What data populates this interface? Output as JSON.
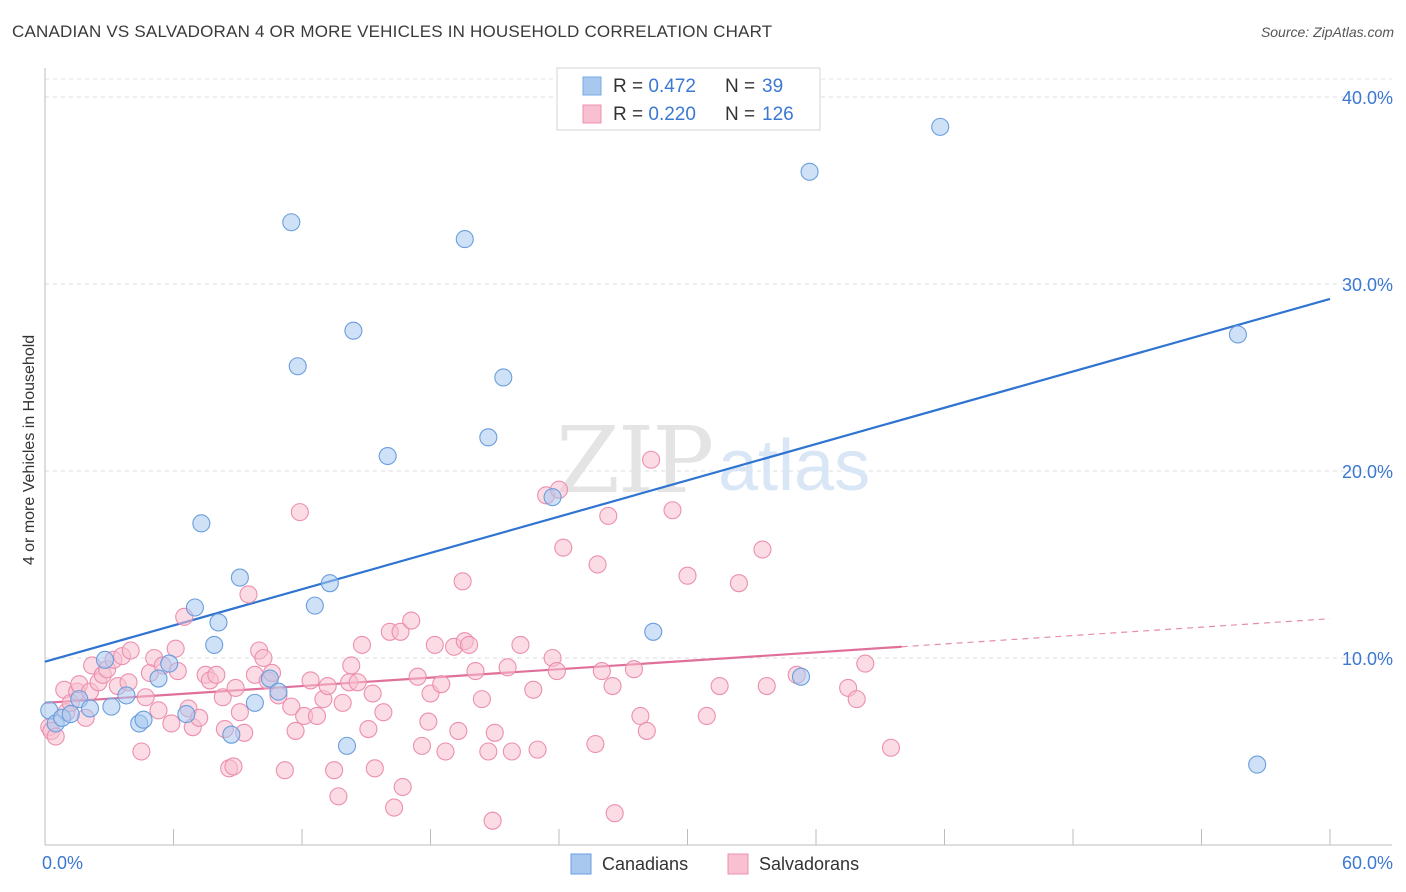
{
  "header": {
    "title": "CANADIAN VS SALVADORAN 4 OR MORE VEHICLES IN HOUSEHOLD CORRELATION CHART",
    "source": "Source: ZipAtlas.com"
  },
  "watermark": {
    "part1": "ZIP",
    "part2": "atlas"
  },
  "legend_top": {
    "rows": [
      {
        "r_label": "R = ",
        "r_value": "0.472",
        "n_label": "N = ",
        "n_value": " 39",
        "color": "#a8c8f0",
        "stroke": "#7aa8e0"
      },
      {
        "r_label": "R = ",
        "r_value": "0.220",
        "n_label": "N = ",
        "n_value": "126",
        "color": "#f8c0d0",
        "stroke": "#f090b0"
      }
    ]
  },
  "chart_data": {
    "type": "scatter",
    "title": "CANADIAN VS SALVADORAN 4 OR MORE VEHICLES IN HOUSEHOLD CORRELATION CHART",
    "xlabel": "",
    "ylabel": "4 or more Vehicles in Household",
    "xlim": [
      0,
      60
    ],
    "ylim": [
      0,
      40.8
    ],
    "x_tick_labels": {
      "left": "0.0%",
      "right": "60.0%"
    },
    "y_ticks": [
      10,
      20,
      30,
      40
    ],
    "y_tick_labels": [
      "10.0%",
      "20.0%",
      "30.0%",
      "40.0%"
    ],
    "grid": true,
    "legend_position": "bottom-center",
    "series": [
      {
        "name": "Canadians",
        "color": "#a8c8f0",
        "stroke": "#6a9edc",
        "line_color": "#2f74d0",
        "trend": {
          "x0": 0,
          "y0": 9.8,
          "x1": 60,
          "y1": 29.2,
          "solid_until": 60
        },
        "points": [
          [
            0.2,
            7.2
          ],
          [
            0.5,
            6.5
          ],
          [
            0.8,
            6.8
          ],
          [
            1.2,
            7.0
          ],
          [
            1.6,
            7.8
          ],
          [
            2.1,
            7.3
          ],
          [
            2.8,
            9.9
          ],
          [
            3.1,
            7.4
          ],
          [
            3.8,
            8.0
          ],
          [
            4.4,
            6.5
          ],
          [
            4.6,
            6.7
          ],
          [
            5.3,
            8.9
          ],
          [
            5.8,
            9.7
          ],
          [
            6.6,
            7.0
          ],
          [
            7.0,
            12.7
          ],
          [
            7.3,
            17.2
          ],
          [
            7.9,
            10.7
          ],
          [
            8.1,
            11.9
          ],
          [
            8.7,
            5.9
          ],
          [
            9.1,
            14.3
          ],
          [
            9.8,
            7.6
          ],
          [
            10.5,
            8.9
          ],
          [
            10.9,
            8.2
          ],
          [
            11.5,
            33.3
          ],
          [
            11.8,
            25.6
          ],
          [
            12.6,
            12.8
          ],
          [
            13.3,
            14.0
          ],
          [
            14.1,
            5.3
          ],
          [
            14.4,
            27.5
          ],
          [
            16.0,
            20.8
          ],
          [
            19.6,
            32.4
          ],
          [
            20.7,
            21.8
          ],
          [
            21.4,
            25.0
          ],
          [
            23.7,
            18.6
          ],
          [
            28.4,
            11.4
          ],
          [
            35.3,
            9.0
          ],
          [
            35.7,
            36.0
          ],
          [
            41.8,
            38.4
          ],
          [
            55.7,
            27.3
          ],
          [
            56.6,
            4.3
          ]
        ]
      },
      {
        "name": "Salvadorans",
        "color": "#f8c0d0",
        "stroke": "#ec8fae",
        "line_color": "#e0709a",
        "trend": {
          "x0": 0,
          "y0": 7.6,
          "x1": 60,
          "y1": 12.1,
          "solid_until": 40
        },
        "points": [
          [
            0.2,
            6.3
          ],
          [
            0.3,
            6.1
          ],
          [
            0.5,
            5.8
          ],
          [
            0.9,
            8.3
          ],
          [
            1.0,
            7.1
          ],
          [
            1.2,
            7.6
          ],
          [
            1.5,
            8.2
          ],
          [
            1.6,
            8.6
          ],
          [
            1.9,
            6.8
          ],
          [
            2.1,
            8.2
          ],
          [
            2.2,
            9.6
          ],
          [
            2.5,
            8.7
          ],
          [
            2.7,
            9.1
          ],
          [
            2.9,
            9.4
          ],
          [
            3.2,
            9.9
          ],
          [
            3.4,
            8.5
          ],
          [
            3.6,
            10.1
          ],
          [
            3.9,
            8.7
          ],
          [
            4.0,
            10.4
          ],
          [
            4.5,
            5.0
          ],
          [
            4.7,
            7.9
          ],
          [
            4.9,
            9.2
          ],
          [
            5.1,
            10.0
          ],
          [
            5.3,
            7.2
          ],
          [
            5.5,
            9.6
          ],
          [
            5.9,
            6.5
          ],
          [
            6.1,
            10.5
          ],
          [
            6.2,
            9.3
          ],
          [
            6.5,
            12.2
          ],
          [
            6.7,
            7.3
          ],
          [
            6.9,
            6.3
          ],
          [
            7.2,
            6.8
          ],
          [
            7.5,
            9.1
          ],
          [
            7.7,
            8.8
          ],
          [
            8.0,
            9.1
          ],
          [
            8.3,
            7.9
          ],
          [
            8.4,
            6.2
          ],
          [
            8.6,
            4.1
          ],
          [
            8.8,
            4.2
          ],
          [
            8.9,
            8.4
          ],
          [
            9.1,
            7.1
          ],
          [
            9.3,
            6.0
          ],
          [
            9.5,
            13.4
          ],
          [
            9.8,
            9.1
          ],
          [
            10.0,
            10.4
          ],
          [
            10.2,
            10.0
          ],
          [
            10.4,
            8.8
          ],
          [
            10.6,
            9.2
          ],
          [
            10.9,
            8.0
          ],
          [
            11.2,
            4.0
          ],
          [
            11.5,
            7.4
          ],
          [
            11.7,
            6.1
          ],
          [
            11.9,
            17.8
          ],
          [
            12.1,
            6.9
          ],
          [
            12.4,
            8.8
          ],
          [
            12.7,
            6.9
          ],
          [
            13.0,
            7.8
          ],
          [
            13.2,
            8.5
          ],
          [
            13.5,
            4.0
          ],
          [
            13.7,
            2.6
          ],
          [
            13.9,
            7.6
          ],
          [
            14.2,
            8.7
          ],
          [
            14.3,
            9.6
          ],
          [
            14.6,
            8.7
          ],
          [
            14.8,
            10.7
          ],
          [
            15.1,
            6.2
          ],
          [
            15.3,
            8.1
          ],
          [
            15.4,
            4.1
          ],
          [
            15.8,
            7.1
          ],
          [
            16.1,
            11.4
          ],
          [
            16.3,
            2.0
          ],
          [
            16.6,
            11.4
          ],
          [
            16.7,
            3.1
          ],
          [
            17.1,
            12.0
          ],
          [
            17.4,
            9.0
          ],
          [
            17.6,
            5.3
          ],
          [
            17.9,
            6.6
          ],
          [
            18.0,
            8.1
          ],
          [
            18.2,
            10.7
          ],
          [
            18.5,
            8.6
          ],
          [
            18.7,
            5.0
          ],
          [
            19.1,
            10.6
          ],
          [
            19.3,
            6.1
          ],
          [
            19.5,
            14.1
          ],
          [
            19.6,
            10.9
          ],
          [
            19.8,
            10.7
          ],
          [
            20.1,
            9.3
          ],
          [
            20.4,
            7.8
          ],
          [
            20.7,
            5.0
          ],
          [
            20.9,
            1.3
          ],
          [
            21.0,
            6.0
          ],
          [
            21.6,
            9.5
          ],
          [
            21.8,
            5.0
          ],
          [
            22.2,
            10.7
          ],
          [
            22.8,
            8.3
          ],
          [
            23.0,
            5.1
          ],
          [
            23.4,
            18.7
          ],
          [
            23.7,
            10.0
          ],
          [
            23.9,
            9.3
          ],
          [
            24.0,
            19.0
          ],
          [
            24.2,
            15.9
          ],
          [
            25.7,
            5.4
          ],
          [
            25.8,
            15.0
          ],
          [
            26.0,
            9.3
          ],
          [
            26.3,
            17.6
          ],
          [
            26.5,
            8.5
          ],
          [
            26.6,
            1.7
          ],
          [
            27.5,
            9.4
          ],
          [
            27.8,
            6.9
          ],
          [
            28.1,
            6.1
          ],
          [
            28.3,
            20.6
          ],
          [
            29.3,
            17.9
          ],
          [
            30.0,
            14.4
          ],
          [
            30.9,
            6.9
          ],
          [
            31.5,
            8.5
          ],
          [
            32.4,
            14.0
          ],
          [
            33.5,
            15.8
          ],
          [
            33.7,
            8.5
          ],
          [
            35.1,
            9.1
          ],
          [
            37.5,
            8.4
          ],
          [
            37.9,
            7.8
          ],
          [
            38.3,
            9.7
          ],
          [
            39.5,
            5.2
          ]
        ]
      }
    ]
  },
  "legend_bottom": {
    "items": [
      {
        "label": "Canadians",
        "color": "#a8c8f0",
        "stroke": "#6a9edc"
      },
      {
        "label": "Salvadorans",
        "color": "#f8c0d0",
        "stroke": "#ec8fae"
      }
    ]
  }
}
